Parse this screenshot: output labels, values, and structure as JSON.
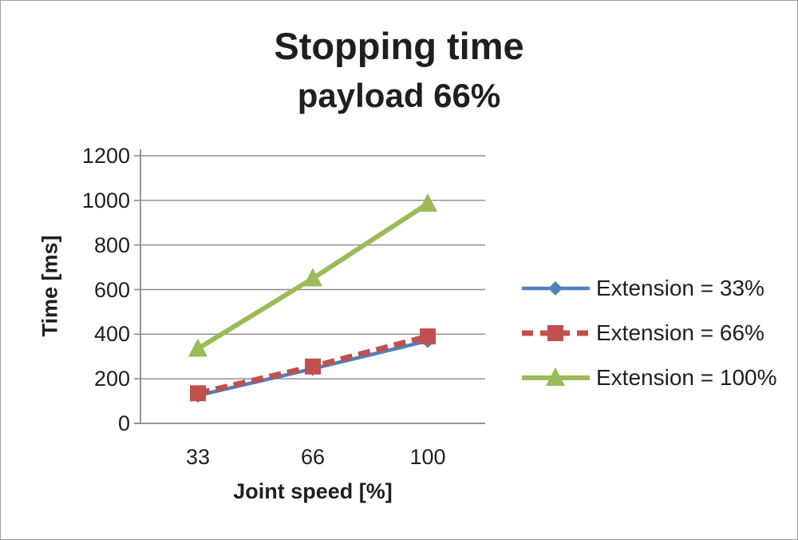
{
  "page": {
    "background": "#ffffff",
    "border_color": "#a0a0a0"
  },
  "chart_data": {
    "type": "line",
    "title": "Stopping time",
    "subtitle": "payload 66%",
    "xlabel": "Joint speed [%]",
    "ylabel": "Time [ms]",
    "categories": [
      "33",
      "66",
      "100"
    ],
    "series": [
      {
        "name": "Extension = 33%",
        "values": [
          125,
          245,
          370
        ],
        "color": "#4F81BD",
        "marker": "diamond",
        "line_style": "solid"
      },
      {
        "name": "Extension = 66%",
        "values": [
          135,
          255,
          390
        ],
        "color": "#C0504D",
        "marker": "square",
        "line_style": "dashed"
      },
      {
        "name": "Extension = 100%",
        "values": [
          335,
          650,
          985
        ],
        "color": "#9BBB59",
        "marker": "triangle",
        "line_style": "solid"
      }
    ],
    "ylim": [
      0,
      1200
    ],
    "yticks": [
      0,
      200,
      400,
      600,
      800,
      1000,
      1200
    ],
    "grid": true,
    "legend_position": "right",
    "grid_color": "#8a8a8a",
    "axis_color": "#8a8a8a",
    "text_color": "#1f1f1f"
  }
}
